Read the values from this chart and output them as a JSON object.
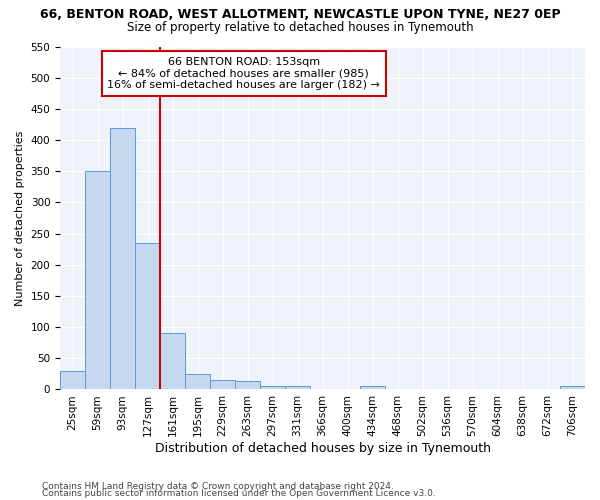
{
  "title": "66, BENTON ROAD, WEST ALLOTMENT, NEWCASTLE UPON TYNE, NE27 0EP",
  "subtitle": "Size of property relative to detached houses in Tynemouth",
  "xlabel": "Distribution of detached houses by size in Tynemouth",
  "ylabel": "Number of detached properties",
  "categories": [
    "25sqm",
    "59sqm",
    "93sqm",
    "127sqm",
    "161sqm",
    "195sqm",
    "229sqm",
    "263sqm",
    "297sqm",
    "331sqm",
    "366sqm",
    "400sqm",
    "434sqm",
    "468sqm",
    "502sqm",
    "536sqm",
    "570sqm",
    "604sqm",
    "638sqm",
    "672sqm",
    "706sqm"
  ],
  "values": [
    30,
    350,
    420,
    235,
    90,
    25,
    15,
    13,
    5,
    5,
    0,
    0,
    5,
    0,
    0,
    0,
    0,
    0,
    0,
    0,
    5
  ],
  "bar_color": "#c5d8f0",
  "bar_edge_color": "#5b9bd5",
  "property_line_label": "66 BENTON ROAD: 153sqm",
  "annotation_line1": "← 84% of detached houses are smaller (985)",
  "annotation_line2": "16% of semi-detached houses are larger (182) →",
  "annotation_box_color": "#ffffff",
  "annotation_box_edge": "#cc0000",
  "line_color": "#cc0000",
  "line_bin_index": 4,
  "ylim": [
    0,
    550
  ],
  "yticks": [
    0,
    50,
    100,
    150,
    200,
    250,
    300,
    350,
    400,
    450,
    500,
    550
  ],
  "footer1": "Contains HM Land Registry data © Crown copyright and database right 2024.",
  "footer2": "Contains public sector information licensed under the Open Government Licence v3.0.",
  "background_color": "#eef2f9",
  "title_fontsize": 9,
  "subtitle_fontsize": 8.5,
  "xlabel_fontsize": 9,
  "ylabel_fontsize": 8,
  "tick_fontsize": 7.5,
  "footer_fontsize": 6.5,
  "annot_fontsize": 8
}
